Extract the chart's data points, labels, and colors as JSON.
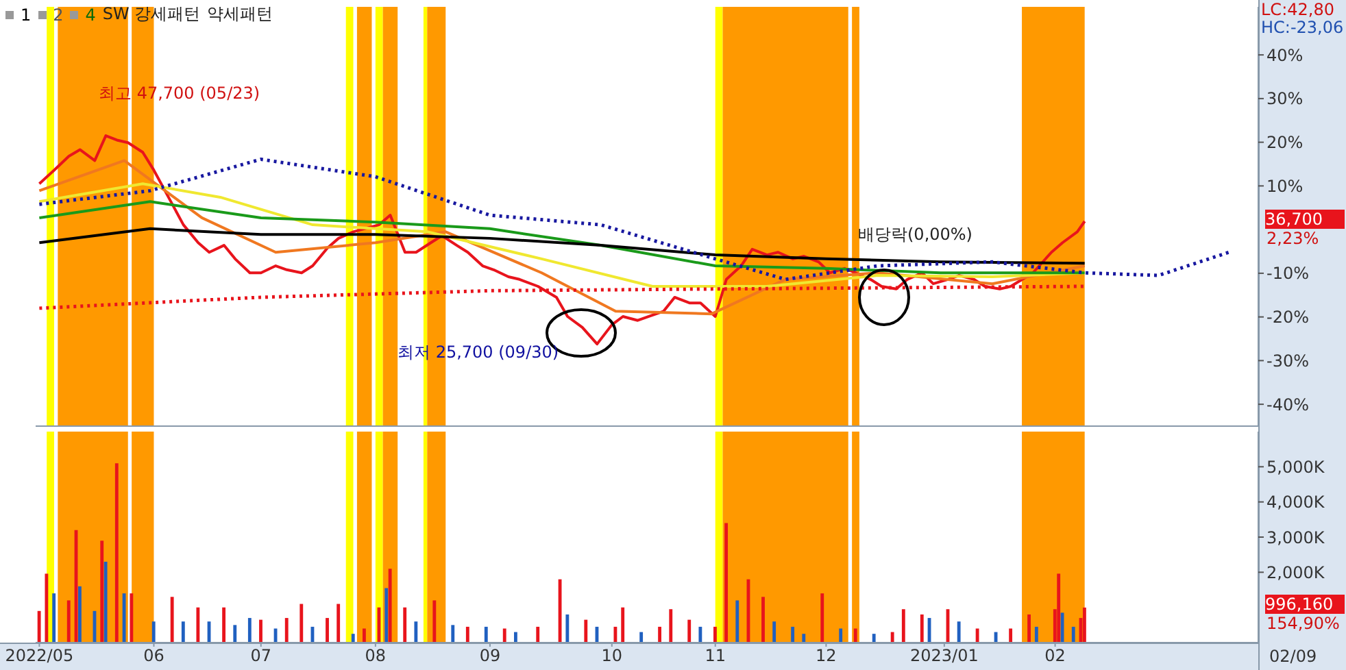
{
  "chart_data": [
    {
      "type": "line",
      "xlim": [
        "2022-05-01",
        "2023-03-28"
      ],
      "ylim": [
        -45,
        51
      ],
      "yticks": [
        {
          "value": 40,
          "label": "40%"
        },
        {
          "value": 30,
          "label": "30%"
        },
        {
          "value": 20,
          "label": "20%"
        },
        {
          "value": 10,
          "label": "10%"
        },
        {
          "value": -10,
          "label": "-10%"
        },
        {
          "value": -20,
          "label": "-20%"
        },
        {
          "value": -30,
          "label": "-30%"
        },
        {
          "value": -40,
          "label": "-40%"
        }
      ],
      "tick_labels": "y",
      "series": [
        {
          "color": "#e8141c",
          "x": [
            "2022-05-02",
            "2022-05-06",
            "2022-05-10",
            "2022-05-13",
            "2022-05-17",
            "2022-05-20",
            "2022-05-23",
            "2022-05-26",
            "2022-05-30",
            "2022-06-02",
            "2022-06-07",
            "2022-06-10",
            "2022-06-14",
            "2022-06-17",
            "2022-06-21",
            "2022-06-24",
            "2022-06-28",
            "2022-07-01",
            "2022-07-05",
            "2022-07-08",
            "2022-07-12",
            "2022-07-15",
            "2022-07-19",
            "2022-07-22",
            "2022-07-26",
            "2022-07-29",
            "2022-08-02",
            "2022-08-05",
            "2022-08-09",
            "2022-08-12",
            "2022-08-16",
            "2022-08-19",
            "2022-08-23",
            "2022-08-26",
            "2022-08-30",
            "2022-09-02",
            "2022-09-06",
            "2022-09-09",
            "2022-09-14",
            "2022-09-19",
            "2022-09-22",
            "2022-09-26",
            "2022-09-30",
            "2022-10-04",
            "2022-10-07",
            "2022-10-11",
            "2022-10-14",
            "2022-10-18",
            "2022-10-21",
            "2022-10-25",
            "2022-10-28",
            "2022-11-01",
            "2022-11-04",
            "2022-11-08",
            "2022-11-11",
            "2022-11-15",
            "2022-11-18",
            "2022-11-22",
            "2022-11-25",
            "2022-11-29",
            "2022-12-02",
            "2022-12-06",
            "2022-12-09",
            "2022-12-13",
            "2022-12-16",
            "2022-12-20",
            "2022-12-23",
            "2022-12-27",
            "2022-12-30",
            "2023-01-03",
            "2023-01-06",
            "2023-01-10",
            "2023-01-13",
            "2023-01-17",
            "2023-01-20",
            "2023-01-26",
            "2023-01-31",
            "2023-02-03",
            "2023-02-07",
            "2023-02-09"
          ],
          "values": [
            10.5,
            13.6,
            16.8,
            18.3,
            15.8,
            21.5,
            20.5,
            19.9,
            17.7,
            13.6,
            5.8,
            1.1,
            -3.0,
            -5.2,
            -3.6,
            -6.7,
            -9.9,
            -9.9,
            -8.3,
            -9.2,
            -9.9,
            -8.3,
            -4.2,
            -2.0,
            -0.5,
            0.2,
            1.1,
            3.3,
            -5.2,
            -5.2,
            -3.0,
            -1.4,
            -3.6,
            -5.2,
            -8.3,
            -9.2,
            -10.8,
            -11.4,
            -13.0,
            -15.5,
            -19.9,
            -22.4,
            -26.2,
            -21.8,
            -19.9,
            -20.8,
            -19.9,
            -18.7,
            -15.5,
            -16.8,
            -16.8,
            -19.9,
            -11.4,
            -8.3,
            -4.5,
            -5.8,
            -5.2,
            -6.7,
            -6.1,
            -7.4,
            -9.9,
            -8.9,
            -9.9,
            -11.4,
            -13.0,
            -13.6,
            -11.4,
            -9.9,
            -12.4,
            -11.4,
            -10.5,
            -11.4,
            -13.0,
            -13.6,
            -13.0,
            -9.9,
            -5.2,
            -3.0,
            -0.5,
            1.9
          ]
        },
        {
          "color": "#f07820",
          "x": [
            "2022-05-02",
            "2022-05-25",
            "2022-06-15",
            "2022-07-05",
            "2022-08-01",
            "2022-08-20",
            "2022-09-15",
            "2022-10-05",
            "2022-10-31",
            "2022-11-20",
            "2022-12-15",
            "2023-01-15",
            "2023-02-09"
          ],
          "values": [
            8.9,
            15.8,
            2.7,
            -5.2,
            -3.0,
            -0.5,
            -9.9,
            -18.7,
            -19.3,
            -11.4,
            -9.9,
            -12.4,
            -8.3
          ]
        },
        {
          "color": "#f0e830",
          "x": [
            "2022-05-02",
            "2022-05-30",
            "2022-06-20",
            "2022-07-15",
            "2022-08-15",
            "2022-09-15",
            "2022-10-15",
            "2022-11-15",
            "2022-12-15",
            "2023-01-15",
            "2023-02-09"
          ],
          "values": [
            6.4,
            10.5,
            7.4,
            1.1,
            -0.5,
            -6.7,
            -13.0,
            -13.0,
            -10.5,
            -10.8,
            -9.9
          ]
        },
        {
          "color": "#1a9a1a",
          "x": [
            "2022-05-02",
            "2022-06-01",
            "2022-07-01",
            "2022-08-01",
            "2022-09-01",
            "2022-10-01",
            "2022-11-01",
            "2022-12-01",
            "2023-01-01",
            "2023-02-09"
          ],
          "values": [
            2.7,
            6.4,
            2.7,
            1.7,
            0.2,
            -3.6,
            -8.3,
            -8.9,
            -9.9,
            -9.9
          ]
        },
        {
          "color": "#000000",
          "x": [
            "2022-05-02",
            "2022-06-01",
            "2022-07-01",
            "2022-08-01",
            "2022-09-01",
            "2022-10-01",
            "2022-11-01",
            "2022-12-01",
            "2023-01-01",
            "2023-02-09"
          ],
          "values": [
            -3.0,
            0.2,
            -1.1,
            -1.1,
            -2.0,
            -3.6,
            -5.8,
            -6.7,
            -7.4,
            -7.7
          ]
        },
        {
          "color": "#1818a0",
          "line_style": "dotted",
          "x": [
            "2022-05-02",
            "2022-06-01",
            "2022-07-01",
            "2022-08-01",
            "2022-09-01",
            "2022-10-01",
            "2022-11-01",
            "2022-11-20",
            "2022-12-15",
            "2023-01-15",
            "2023-02-09",
            "2023-03-01",
            "2023-03-20"
          ],
          "values": [
            5.8,
            8.9,
            16.1,
            12.1,
            3.3,
            1.1,
            -6.7,
            -11.4,
            -8.3,
            -7.4,
            -9.9,
            -10.5,
            -5.2
          ]
        },
        {
          "color": "#e8141c",
          "line_style": "dotted",
          "x": [
            "2022-05-02",
            "2022-07-01",
            "2022-09-01",
            "2022-11-01",
            "2023-02-09"
          ],
          "values": [
            -18.0,
            -15.5,
            -14.0,
            -13.6,
            -13.0
          ]
        }
      ],
      "bands": [
        {
          "axis": "x",
          "from": "2022-05-04",
          "to": "2022-05-06",
          "color": "#ffff00"
        },
        {
          "axis": "x",
          "from": "2022-05-07",
          "to": "2022-05-26",
          "color": "#ff9900"
        },
        {
          "axis": "x",
          "from": "2022-05-27",
          "to": "2022-06-02",
          "color": "#ff9900"
        },
        {
          "axis": "x",
          "from": "2022-07-24",
          "to": "2022-07-26",
          "color": "#ffff00"
        },
        {
          "axis": "x",
          "from": "2022-07-27",
          "to": "2022-07-31",
          "color": "#ff9900"
        },
        {
          "axis": "x",
          "from": "2022-08-01",
          "to": "2022-08-03",
          "color": "#ffff00"
        },
        {
          "axis": "x",
          "from": "2022-08-03",
          "to": "2022-08-07",
          "color": "#ff9900"
        },
        {
          "axis": "x",
          "from": "2022-08-14",
          "to": "2022-08-15",
          "color": "#ffff00"
        },
        {
          "axis": "x",
          "from": "2022-08-15",
          "to": "2022-08-20",
          "color": "#ff9900"
        },
        {
          "axis": "x",
          "from": "2022-11-01",
          "to": "2022-11-03",
          "color": "#ffff00"
        },
        {
          "axis": "x",
          "from": "2022-11-03",
          "to": "2022-12-07",
          "color": "#ff9900"
        },
        {
          "axis": "x",
          "from": "2022-12-08",
          "to": "2022-12-10",
          "color": "#ff9900"
        },
        {
          "axis": "x",
          "from": "2023-01-23",
          "to": "2023-02-09",
          "color": "#ff9900"
        }
      ],
      "annotations": [
        "최고 47,700 (05/23)",
        "최저 25,700 (09/30)",
        "배당락(0,00%)",
        "LC:42,80",
        "HC:-23,06",
        "36,700",
        "2,23%",
        "1",
        "2",
        "4",
        "SW 강세패턴",
        "약세패턴"
      ]
    },
    {
      "type": "bar",
      "xlim": [
        "2022-05-01",
        "2023-03-28"
      ],
      "xticks": [
        {
          "value": "2022-05-02",
          "label": "2022/05"
        },
        {
          "value": "2022-06-02",
          "label": "06"
        },
        {
          "value": "2022-07-01",
          "label": "07"
        },
        {
          "value": "2022-08-01",
          "label": "08"
        },
        {
          "value": "2022-09-01",
          "label": "09"
        },
        {
          "value": "2022-10-04",
          "label": "10"
        },
        {
          "value": "2022-11-01",
          "label": "11"
        },
        {
          "value": "2022-12-01",
          "label": "12"
        },
        {
          "value": "2023-01-02",
          "label": "2023/01"
        },
        {
          "value": "2023-02-01",
          "label": "02"
        }
      ],
      "ylim": [
        0,
        6000000
      ],
      "yticks": [
        {
          "value": 2000000,
          "label": "2,000K"
        },
        {
          "value": 3000000,
          "label": "3,000K"
        },
        {
          "value": 4000000,
          "label": "4,000K"
        },
        {
          "value": 5000000,
          "label": "5,000K"
        }
      ],
      "series": [
        {
          "x": [
            "2022-05-02",
            "2022-05-04",
            "2022-05-06",
            "2022-05-10",
            "2022-05-12",
            "2022-05-13",
            "2022-05-17",
            "2022-05-19",
            "2022-05-20",
            "2022-05-23",
            "2022-05-25",
            "2022-05-27",
            "2022-06-02",
            "2022-06-07",
            "2022-06-10",
            "2022-06-14",
            "2022-06-17",
            "2022-06-21",
            "2022-06-24",
            "2022-06-28",
            "2022-07-01",
            "2022-07-05",
            "2022-07-08",
            "2022-07-12",
            "2022-07-15",
            "2022-07-19",
            "2022-07-22",
            "2022-07-26",
            "2022-07-29",
            "2022-08-02",
            "2022-08-04",
            "2022-08-05",
            "2022-08-09",
            "2022-08-12",
            "2022-08-17",
            "2022-08-22",
            "2022-08-26",
            "2022-08-31",
            "2022-09-05",
            "2022-09-08",
            "2022-09-14",
            "2022-09-20",
            "2022-09-22",
            "2022-09-27",
            "2022-09-30",
            "2022-10-05",
            "2022-10-07",
            "2022-10-12",
            "2022-10-17",
            "2022-10-20",
            "2022-10-25",
            "2022-10-28",
            "2022-11-01",
            "2022-11-04",
            "2022-11-07",
            "2022-11-10",
            "2022-11-14",
            "2022-11-17",
            "2022-11-22",
            "2022-11-25",
            "2022-11-30",
            "2022-12-05",
            "2022-12-09",
            "2022-12-14",
            "2022-12-19",
            "2022-12-22",
            "2022-12-27",
            "2022-12-29",
            "2023-01-03",
            "2023-01-06",
            "2023-01-11",
            "2023-01-16",
            "2023-01-20",
            "2023-01-25",
            "2023-01-27",
            "2023-02-01",
            "2023-02-02",
            "2023-02-03",
            "2023-02-06",
            "2023-02-08",
            "2023-02-09"
          ],
          "values": [
            900000,
            1960000,
            1400000,
            1200000,
            3200000,
            1600000,
            900000,
            2900000,
            2300000,
            5100000,
            1400000,
            1400000,
            600000,
            1300000,
            600000,
            1000000,
            600000,
            1000000,
            500000,
            700000,
            650000,
            400000,
            700000,
            1100000,
            450000,
            700000,
            1100000,
            250000,
            400000,
            1000000,
            1550000,
            2100000,
            1000000,
            600000,
            1200000,
            500000,
            450000,
            450000,
            400000,
            300000,
            450000,
            1800000,
            800000,
            650000,
            450000,
            450000,
            1000000,
            300000,
            450000,
            950000,
            650000,
            450000,
            450000,
            3400000,
            1200000,
            1800000,
            1300000,
            600000,
            450000,
            250000,
            1400000,
            400000,
            400000,
            250000,
            300000,
            950000,
            800000,
            700000,
            950000,
            600000,
            400000,
            300000,
            400000,
            800000,
            450000,
            950000,
            1960000,
            850000,
            450000,
            700000,
            996160
          ],
          "colors": [
            "#e8141c",
            "#e8141c",
            "#2060c0",
            "#e8141c",
            "#e8141c",
            "#2060c0",
            "#2060c0",
            "#e8141c",
            "#2060c0",
            "#e8141c",
            "#2060c0",
            "#e8141c",
            "#2060c0",
            "#e8141c",
            "#2060c0",
            "#e8141c",
            "#2060c0",
            "#e8141c",
            "#2060c0",
            "#2060c0",
            "#e8141c",
            "#2060c0",
            "#e8141c",
            "#e8141c",
            "#2060c0",
            "#e8141c",
            "#e8141c",
            "#2060c0",
            "#e8141c",
            "#e8141c",
            "#2060c0",
            "#e8141c",
            "#e8141c",
            "#2060c0",
            "#e8141c",
            "#2060c0",
            "#e8141c",
            "#2060c0",
            "#e8141c",
            "#2060c0",
            "#e8141c",
            "#e8141c",
            "#2060c0",
            "#e8141c",
            "#2060c0",
            "#e8141c",
            "#e8141c",
            "#2060c0",
            "#e8141c",
            "#e8141c",
            "#e8141c",
            "#2060c0",
            "#e8141c",
            "#e8141c",
            "#2060c0",
            "#e8141c",
            "#e8141c",
            "#2060c0",
            "#2060c0",
            "#2060c0",
            "#e8141c",
            "#2060c0",
            "#e8141c",
            "#2060c0",
            "#e8141c",
            "#e8141c",
            "#e8141c",
            "#2060c0",
            "#e8141c",
            "#2060c0",
            "#e8141c",
            "#2060c0",
            "#e8141c",
            "#e8141c",
            "#2060c0",
            "#e8141c",
            "#e8141c",
            "#2060c0",
            "#2060c0",
            "#e8141c",
            "#e8141c"
          ]
        }
      ],
      "bands": [
        {
          "axis": "x",
          "from": "2022-05-04",
          "to": "2022-05-06",
          "color": "#ffff00"
        },
        {
          "axis": "x",
          "from": "2022-05-07",
          "to": "2022-05-26",
          "color": "#ff9900"
        },
        {
          "axis": "x",
          "from": "2022-05-27",
          "to": "2022-06-02",
          "color": "#ff9900"
        },
        {
          "axis": "x",
          "from": "2022-07-24",
          "to": "2022-07-26",
          "color": "#ffff00"
        },
        {
          "axis": "x",
          "from": "2022-07-27",
          "to": "2022-07-31",
          "color": "#ff9900"
        },
        {
          "axis": "x",
          "from": "2022-08-01",
          "to": "2022-08-03",
          "color": "#ffff00"
        },
        {
          "axis": "x",
          "from": "2022-08-03",
          "to": "2022-08-07",
          "color": "#ff9900"
        },
        {
          "axis": "x",
          "from": "2022-08-14",
          "to": "2022-08-15",
          "color": "#ffff00"
        },
        {
          "axis": "x",
          "from": "2022-08-15",
          "to": "2022-08-20",
          "color": "#ff9900"
        },
        {
          "axis": "x",
          "from": "2022-11-01",
          "to": "2022-11-03",
          "color": "#ffff00"
        },
        {
          "axis": "x",
          "from": "2022-11-03",
          "to": "2022-12-07",
          "color": "#ff9900"
        },
        {
          "axis": "x",
          "from": "2022-12-08",
          "to": "2022-12-10",
          "color": "#ff9900"
        },
        {
          "axis": "x",
          "from": "2023-01-23",
          "to": "2023-02-09",
          "color": "#ff9900"
        }
      ],
      "annotations": [
        "996,160",
        "154,90%",
        "02/09"
      ]
    }
  ]
}
